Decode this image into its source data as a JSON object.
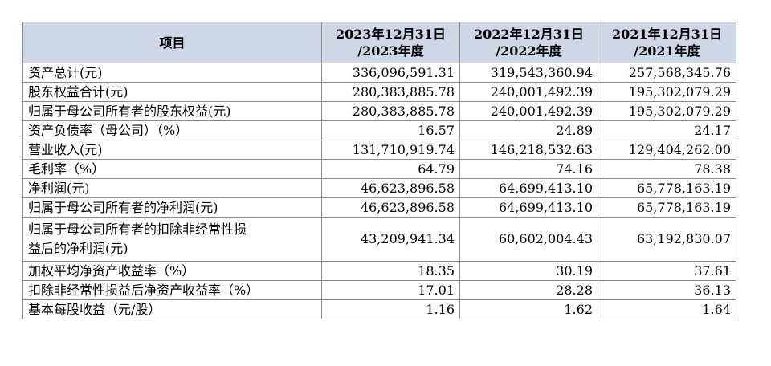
{
  "table": {
    "headers": {
      "item": "项目",
      "col1": {
        "line1": "2023年12月31日",
        "line2": "/2023年度"
      },
      "col2": {
        "line1": "2022年12月31日",
        "line2": "/2022年度"
      },
      "col3": {
        "line1": "2021年12月31日",
        "line2": "/2021年度"
      }
    },
    "rows": [
      {
        "label": "资产总计(元)",
        "v2023": "336,096,591.31",
        "v2022": "319,543,360.94",
        "v2021": "257,568,345.76"
      },
      {
        "label": "股东权益合计(元)",
        "v2023": "280,383,885.78",
        "v2022": "240,001,492.39",
        "v2021": "195,302,079.29"
      },
      {
        "label": "归属于母公司所有者的股东权益(元)",
        "v2023": "280,383,885.78",
        "v2022": "240,001,492.39",
        "v2021": "195,302,079.29"
      },
      {
        "label": "资产负债率（母公司）（%）",
        "v2023": "16.57",
        "v2022": "24.89",
        "v2021": "24.17"
      },
      {
        "label": "营业收入(元)",
        "v2023": "131,710,919.74",
        "v2022": "146,218,532.63",
        "v2021": "129,404,262.00"
      },
      {
        "label": "毛利率（%）",
        "v2023": "64.79",
        "v2022": "74.16",
        "v2021": "78.38"
      },
      {
        "label": "净利润(元)",
        "v2023": "46,623,896.58",
        "v2022": "64,699,413.10",
        "v2021": "65,778,163.19"
      },
      {
        "label": "归属于母公司所有者的净利润(元)",
        "v2023": "46,623,896.58",
        "v2022": "64,699,413.10",
        "v2021": "65,778,163.19"
      },
      {
        "label_line1": "归属于母公司所有者的扣除非经常性损",
        "label_line2": "益后的净利润(元)",
        "v2023": "43,209,941.34",
        "v2022": "60,602,004.43",
        "v2021": "63,192,830.07"
      },
      {
        "label": "加权平均净资产收益率（%）",
        "v2023": "18.35",
        "v2022": "30.19",
        "v2021": "37.61"
      },
      {
        "label": "扣除非经常性损益后净资产收益率（%）",
        "v2023": "17.01",
        "v2022": "28.28",
        "v2021": "36.13"
      },
      {
        "label": "基本每股收益（元/股）",
        "v2023": "1.16",
        "v2022": "1.62",
        "v2021": "1.64"
      }
    ]
  }
}
